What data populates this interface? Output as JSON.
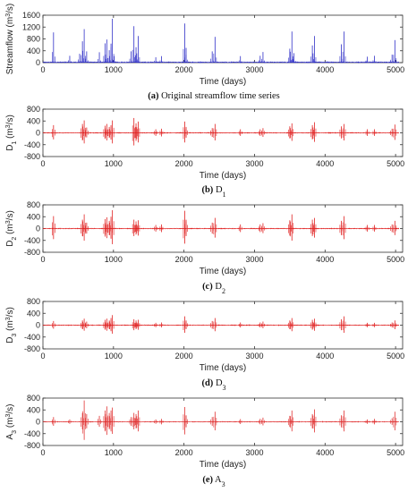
{
  "chart_data": [
    {
      "type": "line",
      "panel": "a",
      "caption_letter": "(a)",
      "caption_text": "Original streamflow time series",
      "xlabel": "Time (days)",
      "ylabel": "Streamflow (m³/s)",
      "ylabel_base": "Streamflow (m",
      "ylabel_sup": "3",
      "ylabel_tail": "/s)",
      "xlim": [
        0,
        5100
      ],
      "ylim": [
        0,
        1600
      ],
      "xticks": [
        0,
        1000,
        2000,
        3000,
        4000,
        5000
      ],
      "yticks": [
        0,
        400,
        800,
        1200,
        1600
      ],
      "color": "#3030c8",
      "baseline": 0,
      "grid": false,
      "spikes": [
        [
          150,
          1020
        ],
        [
          380,
          230
        ],
        [
          520,
          300
        ],
        [
          560,
          720
        ],
        [
          585,
          1130
        ],
        [
          620,
          380
        ],
        [
          800,
          350
        ],
        [
          880,
          650
        ],
        [
          905,
          780
        ],
        [
          940,
          420
        ],
        [
          965,
          640
        ],
        [
          985,
          1480
        ],
        [
          1010,
          220
        ],
        [
          1250,
          380
        ],
        [
          1290,
          1230
        ],
        [
          1320,
          520
        ],
        [
          1350,
          900
        ],
        [
          1600,
          180
        ],
        [
          1680,
          220
        ],
        [
          2010,
          1320
        ],
        [
          2030,
          500
        ],
        [
          2400,
          380
        ],
        [
          2440,
          870
        ],
        [
          2800,
          220
        ],
        [
          3080,
          230
        ],
        [
          3120,
          360
        ],
        [
          3500,
          470
        ],
        [
          3530,
          1050
        ],
        [
          3560,
          320
        ],
        [
          3820,
          580
        ],
        [
          3850,
          900
        ],
        [
          4230,
          620
        ],
        [
          4270,
          1050
        ],
        [
          4600,
          200
        ],
        [
          4700,
          230
        ],
        [
          4950,
          270
        ],
        [
          4990,
          760
        ]
      ]
    },
    {
      "type": "line",
      "panel": "b",
      "caption_letter": "(b)",
      "caption_text": "D₁",
      "caption_base": "D",
      "caption_sub": "1",
      "xlabel": "Time (days)",
      "ylabel": "D₁ (m³/s)",
      "ylabel_base": "D",
      "ylabel_sub": "1",
      "ylabel_mid": " (m",
      "ylabel_sup": "3",
      "ylabel_tail": "/s)",
      "xlim": [
        0,
        5100
      ],
      "ylim": [
        -800,
        800
      ],
      "xticks": [
        0,
        1000,
        2000,
        3000,
        4000,
        5000
      ],
      "yticks": [
        -800,
        -400,
        0,
        400,
        800
      ],
      "color": "#e02020",
      "baseline": 0,
      "grid": false,
      "spikes": [
        [
          150,
          260
        ],
        [
          560,
          300
        ],
        [
          585,
          420
        ],
        [
          620,
          180
        ],
        [
          880,
          240
        ],
        [
          905,
          300
        ],
        [
          940,
          200
        ],
        [
          965,
          260
        ],
        [
          985,
          420
        ],
        [
          1290,
          500
        ],
        [
          1320,
          320
        ],
        [
          1350,
          380
        ],
        [
          1600,
          120
        ],
        [
          1680,
          140
        ],
        [
          2010,
          380
        ],
        [
          2030,
          200
        ],
        [
          2400,
          160
        ],
        [
          2440,
          300
        ],
        [
          2800,
          120
        ],
        [
          3080,
          120
        ],
        [
          3120,
          160
        ],
        [
          3500,
          220
        ],
        [
          3530,
          320
        ],
        [
          3820,
          260
        ],
        [
          3850,
          360
        ],
        [
          4230,
          220
        ],
        [
          4270,
          300
        ],
        [
          4600,
          120
        ],
        [
          4700,
          120
        ],
        [
          4950,
          140
        ],
        [
          4990,
          280
        ]
      ]
    },
    {
      "type": "line",
      "panel": "c",
      "caption_letter": "(c)",
      "caption_text": "D₂",
      "caption_base": "D",
      "caption_sub": "2",
      "xlabel": "Time (days)",
      "ylabel": "D₂ (m³/s)",
      "ylabel_base": "D",
      "ylabel_sub": "2",
      "ylabel_mid": " (m",
      "ylabel_sup": "3",
      "ylabel_tail": "/s)",
      "xlim": [
        0,
        5100
      ],
      "ylim": [
        -800,
        800
      ],
      "xticks": [
        0,
        1000,
        2000,
        3000,
        4000,
        5000
      ],
      "yticks": [
        -800,
        -400,
        0,
        400,
        800
      ],
      "color": "#e02020",
      "baseline": 0,
      "grid": false,
      "spikes": [
        [
          150,
          420
        ],
        [
          560,
          300
        ],
        [
          585,
          480
        ],
        [
          620,
          200
        ],
        [
          880,
          320
        ],
        [
          905,
          380
        ],
        [
          940,
          260
        ],
        [
          965,
          400
        ],
        [
          985,
          620
        ],
        [
          1290,
          300
        ],
        [
          1320,
          240
        ],
        [
          1350,
          280
        ],
        [
          1600,
          120
        ],
        [
          1680,
          140
        ],
        [
          2010,
          600
        ],
        [
          2030,
          300
        ],
        [
          2400,
          200
        ],
        [
          2440,
          360
        ],
        [
          2800,
          140
        ],
        [
          3080,
          140
        ],
        [
          3120,
          180
        ],
        [
          3500,
          280
        ],
        [
          3530,
          480
        ],
        [
          3820,
          300
        ],
        [
          3850,
          360
        ],
        [
          4230,
          260
        ],
        [
          4270,
          420
        ],
        [
          4600,
          120
        ],
        [
          4700,
          120
        ],
        [
          4950,
          140
        ],
        [
          4990,
          260
        ]
      ]
    },
    {
      "type": "line",
      "panel": "d",
      "caption_letter": "(d)",
      "caption_text": "D₃",
      "caption_base": "D",
      "caption_sub": "3",
      "xlabel": "Time (days)",
      "ylabel": "D₃ (m³/s)",
      "ylabel_base": "D",
      "ylabel_sub": "3",
      "ylabel_mid": " (m",
      "ylabel_sup": "3",
      "ylabel_tail": "/s)",
      "xlim": [
        0,
        5100
      ],
      "ylim": [
        -800,
        800
      ],
      "xticks": [
        0,
        1000,
        2000,
        3000,
        4000,
        5000
      ],
      "yticks": [
        -800,
        -400,
        0,
        400,
        800
      ],
      "color": "#e02020",
      "baseline": 0,
      "grid": false,
      "spikes": [
        [
          150,
          140
        ],
        [
          560,
          160
        ],
        [
          585,
          220
        ],
        [
          620,
          120
        ],
        [
          880,
          180
        ],
        [
          905,
          220
        ],
        [
          940,
          160
        ],
        [
          965,
          240
        ],
        [
          985,
          340
        ],
        [
          1290,
          200
        ],
        [
          1320,
          160
        ],
        [
          1350,
          180
        ],
        [
          1600,
          80
        ],
        [
          1680,
          90
        ],
        [
          2010,
          300
        ],
        [
          2030,
          160
        ],
        [
          2400,
          140
        ],
        [
          2440,
          240
        ],
        [
          2800,
          90
        ],
        [
          3080,
          90
        ],
        [
          3120,
          120
        ],
        [
          3500,
          160
        ],
        [
          3530,
          240
        ],
        [
          3820,
          180
        ],
        [
          3850,
          220
        ],
        [
          4230,
          200
        ],
        [
          4270,
          300
        ],
        [
          4600,
          80
        ],
        [
          4700,
          80
        ],
        [
          4950,
          90
        ],
        [
          4990,
          160
        ]
      ]
    },
    {
      "type": "line",
      "panel": "e",
      "caption_letter": "(e)",
      "caption_text": "A₃",
      "caption_base": "A",
      "caption_sub": "3",
      "xlabel": "Time (days)",
      "ylabel": "A₃ (m³/s)",
      "ylabel_base": "A",
      "ylabel_sub": "3",
      "ylabel_mid": " (m",
      "ylabel_sup": "3",
      "ylabel_tail": "/s)",
      "xlim": [
        0,
        5100
      ],
      "ylim": [
        -800,
        800
      ],
      "xticks": [
        0,
        1000,
        2000,
        3000,
        4000,
        5000
      ],
      "yticks": [
        -800,
        -400,
        0,
        400,
        800
      ],
      "color": "#e03030",
      "baseline": 0,
      "grid": false,
      "spikes": [
        [
          150,
          160
        ],
        [
          380,
          80
        ],
        [
          560,
          300
        ],
        [
          585,
          720
        ],
        [
          620,
          260
        ],
        [
          800,
          200
        ],
        [
          880,
          380
        ],
        [
          905,
          520
        ],
        [
          940,
          300
        ],
        [
          965,
          380
        ],
        [
          985,
          480
        ],
        [
          1250,
          160
        ],
        [
          1290,
          300
        ],
        [
          1320,
          260
        ],
        [
          1350,
          380
        ],
        [
          1600,
          80
        ],
        [
          1680,
          100
        ],
        [
          2010,
          500
        ],
        [
          2030,
          220
        ],
        [
          2400,
          160
        ],
        [
          2440,
          340
        ],
        [
          2800,
          90
        ],
        [
          3080,
          100
        ],
        [
          3120,
          140
        ],
        [
          3500,
          200
        ],
        [
          3530,
          380
        ],
        [
          3820,
          260
        ],
        [
          3850,
          420
        ],
        [
          4230,
          220
        ],
        [
          4270,
          380
        ],
        [
          4600,
          80
        ],
        [
          4700,
          100
        ],
        [
          4950,
          120
        ],
        [
          4990,
          340
        ]
      ]
    }
  ]
}
